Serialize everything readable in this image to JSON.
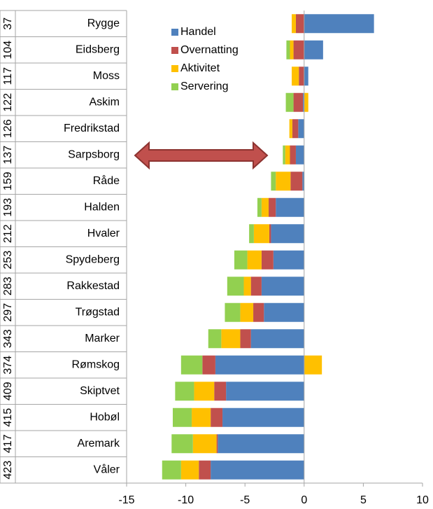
{
  "chart_data": {
    "type": "bar",
    "orientation": "horizontal",
    "stacked": true,
    "categories": [
      "Rygge",
      "Eidsberg",
      "Moss",
      "Askim",
      "Fredrikstad",
      "Sarpsborg",
      "Råde",
      "Halden",
      "Hvaler",
      "Spydeberg",
      "Rakkestad",
      "Trøgstad",
      "Marker",
      "Rømskog",
      "Skiptvet",
      "Hobøl",
      "Aremark",
      "Våler"
    ],
    "rank_labels": [
      "37",
      "104",
      "117",
      "122",
      "126",
      "137",
      "159",
      "193",
      "212",
      "253",
      "283",
      "297",
      "343",
      "374",
      "409",
      "415",
      "417",
      "423"
    ],
    "series": [
      {
        "name": "Handel",
        "color": "#4f81bd",
        "values": [
          5.9,
          1.6,
          0.35,
          -0.1,
          -0.5,
          -0.7,
          -0.15,
          -2.4,
          -2.8,
          -2.6,
          -3.6,
          -3.4,
          -4.5,
          -7.5,
          -6.6,
          -6.9,
          -7.3,
          -7.9
        ]
      },
      {
        "name": "Overnatting",
        "color": "#c0504d",
        "values": [
          -0.7,
          -0.9,
          -0.45,
          -0.8,
          -0.5,
          -0.5,
          -1.0,
          -0.6,
          -0.15,
          -1.0,
          -0.9,
          -0.9,
          -0.9,
          -1.1,
          -1.0,
          -1.0,
          -0.1,
          -1.0
        ]
      },
      {
        "name": "Aktivitet",
        "color": "#ffc000",
        "values": [
          -0.35,
          -0.3,
          -0.6,
          0.35,
          -0.25,
          -0.4,
          -1.25,
          -0.6,
          -1.3,
          -1.2,
          -0.6,
          -1.1,
          -1.6,
          1.5,
          -1.7,
          -1.6,
          -2.0,
          -1.5
        ]
      },
      {
        "name": "Servering",
        "color": "#92d050",
        "values": [
          0,
          -0.3,
          0,
          -0.65,
          0,
          -0.2,
          -0.4,
          -0.35,
          -0.4,
          -1.1,
          -1.4,
          -1.3,
          -1.1,
          -1.8,
          -1.6,
          -1.6,
          -1.8,
          -1.6
        ]
      }
    ],
    "xlim": [
      -15,
      10
    ],
    "xticks": [
      -15,
      -10,
      -5,
      0,
      5,
      10
    ],
    "legend": "top-left"
  }
}
